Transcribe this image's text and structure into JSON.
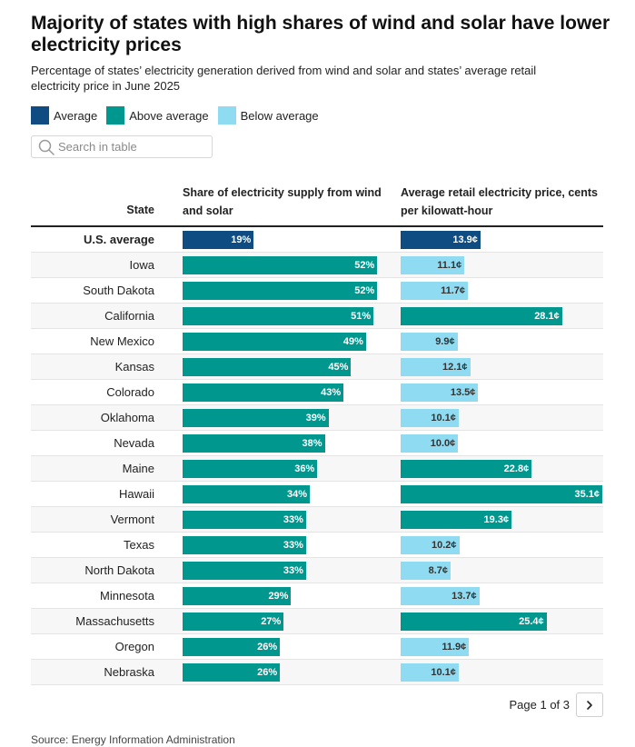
{
  "title": "Majority of states with high shares of wind and solar have lower electricity prices",
  "subtitle": "Percentage of states’ electricity generation derived from wind and solar and states’ average retail electricity price in June 2025",
  "legend": [
    {
      "label": "Average",
      "color": "#0f4c81"
    },
    {
      "label": "Above average",
      "color": "#00978f"
    },
    {
      "label": "Below average",
      "color": "#8fdcf2"
    }
  ],
  "search": {
    "placeholder": "Search in table",
    "value": ""
  },
  "colors": {
    "average": "#0f4c81",
    "above": "#00978f",
    "below": "#8fdcf2",
    "share": "#00978f"
  },
  "pager": {
    "text": "Page 1 of 3"
  },
  "source": "Source: Energy Information Administration",
  "chart_data": {
    "type": "table",
    "title": "Majority of states with high shares of wind and solar have lower electricity prices",
    "columns": [
      "State",
      "Share of electricity supply from wind and solar",
      "Average retail electricity price, cents per kilowatt-hour"
    ],
    "share_max": 100,
    "price_max": 35.1,
    "rows": [
      {
        "state": "U.S. average",
        "share": 19,
        "share_label": "19%",
        "price": 13.9,
        "price_label": "13.9¢",
        "category": "average"
      },
      {
        "state": "Iowa",
        "share": 52,
        "share_label": "52%",
        "price": 11.1,
        "price_label": "11.1¢",
        "category": "below"
      },
      {
        "state": "South Dakota",
        "share": 52,
        "share_label": "52%",
        "price": 11.7,
        "price_label": "11.7¢",
        "category": "below"
      },
      {
        "state": "California",
        "share": 51,
        "share_label": "51%",
        "price": 28.1,
        "price_label": "28.1¢",
        "category": "above"
      },
      {
        "state": "New Mexico",
        "share": 49,
        "share_label": "49%",
        "price": 9.9,
        "price_label": "9.9¢",
        "category": "below"
      },
      {
        "state": "Kansas",
        "share": 45,
        "share_label": "45%",
        "price": 12.1,
        "price_label": "12.1¢",
        "category": "below"
      },
      {
        "state": "Colorado",
        "share": 43,
        "share_label": "43%",
        "price": 13.5,
        "price_label": "13.5¢",
        "category": "below"
      },
      {
        "state": "Oklahoma",
        "share": 39,
        "share_label": "39%",
        "price": 10.1,
        "price_label": "10.1¢",
        "category": "below"
      },
      {
        "state": "Nevada",
        "share": 38,
        "share_label": "38%",
        "price": 10.0,
        "price_label": "10.0¢",
        "category": "below"
      },
      {
        "state": "Maine",
        "share": 36,
        "share_label": "36%",
        "price": 22.8,
        "price_label": "22.8¢",
        "category": "above"
      },
      {
        "state": "Hawaii",
        "share": 34,
        "share_label": "34%",
        "price": 35.1,
        "price_label": "35.1¢",
        "category": "above"
      },
      {
        "state": "Vermont",
        "share": 33,
        "share_label": "33%",
        "price": 19.3,
        "price_label": "19.3¢",
        "category": "above"
      },
      {
        "state": "Texas",
        "share": 33,
        "share_label": "33%",
        "price": 10.2,
        "price_label": "10.2¢",
        "category": "below"
      },
      {
        "state": "North Dakota",
        "share": 33,
        "share_label": "33%",
        "price": 8.7,
        "price_label": "8.7¢",
        "category": "below"
      },
      {
        "state": "Minnesota",
        "share": 29,
        "share_label": "29%",
        "price": 13.7,
        "price_label": "13.7¢",
        "category": "below"
      },
      {
        "state": "Massachusetts",
        "share": 27,
        "share_label": "27%",
        "price": 25.4,
        "price_label": "25.4¢",
        "category": "above"
      },
      {
        "state": "Oregon",
        "share": 26,
        "share_label": "26%",
        "price": 11.9,
        "price_label": "11.9¢",
        "category": "below"
      },
      {
        "state": "Nebraska",
        "share": 26,
        "share_label": "26%",
        "price": 10.1,
        "price_label": "10.1¢",
        "category": "below"
      }
    ]
  }
}
